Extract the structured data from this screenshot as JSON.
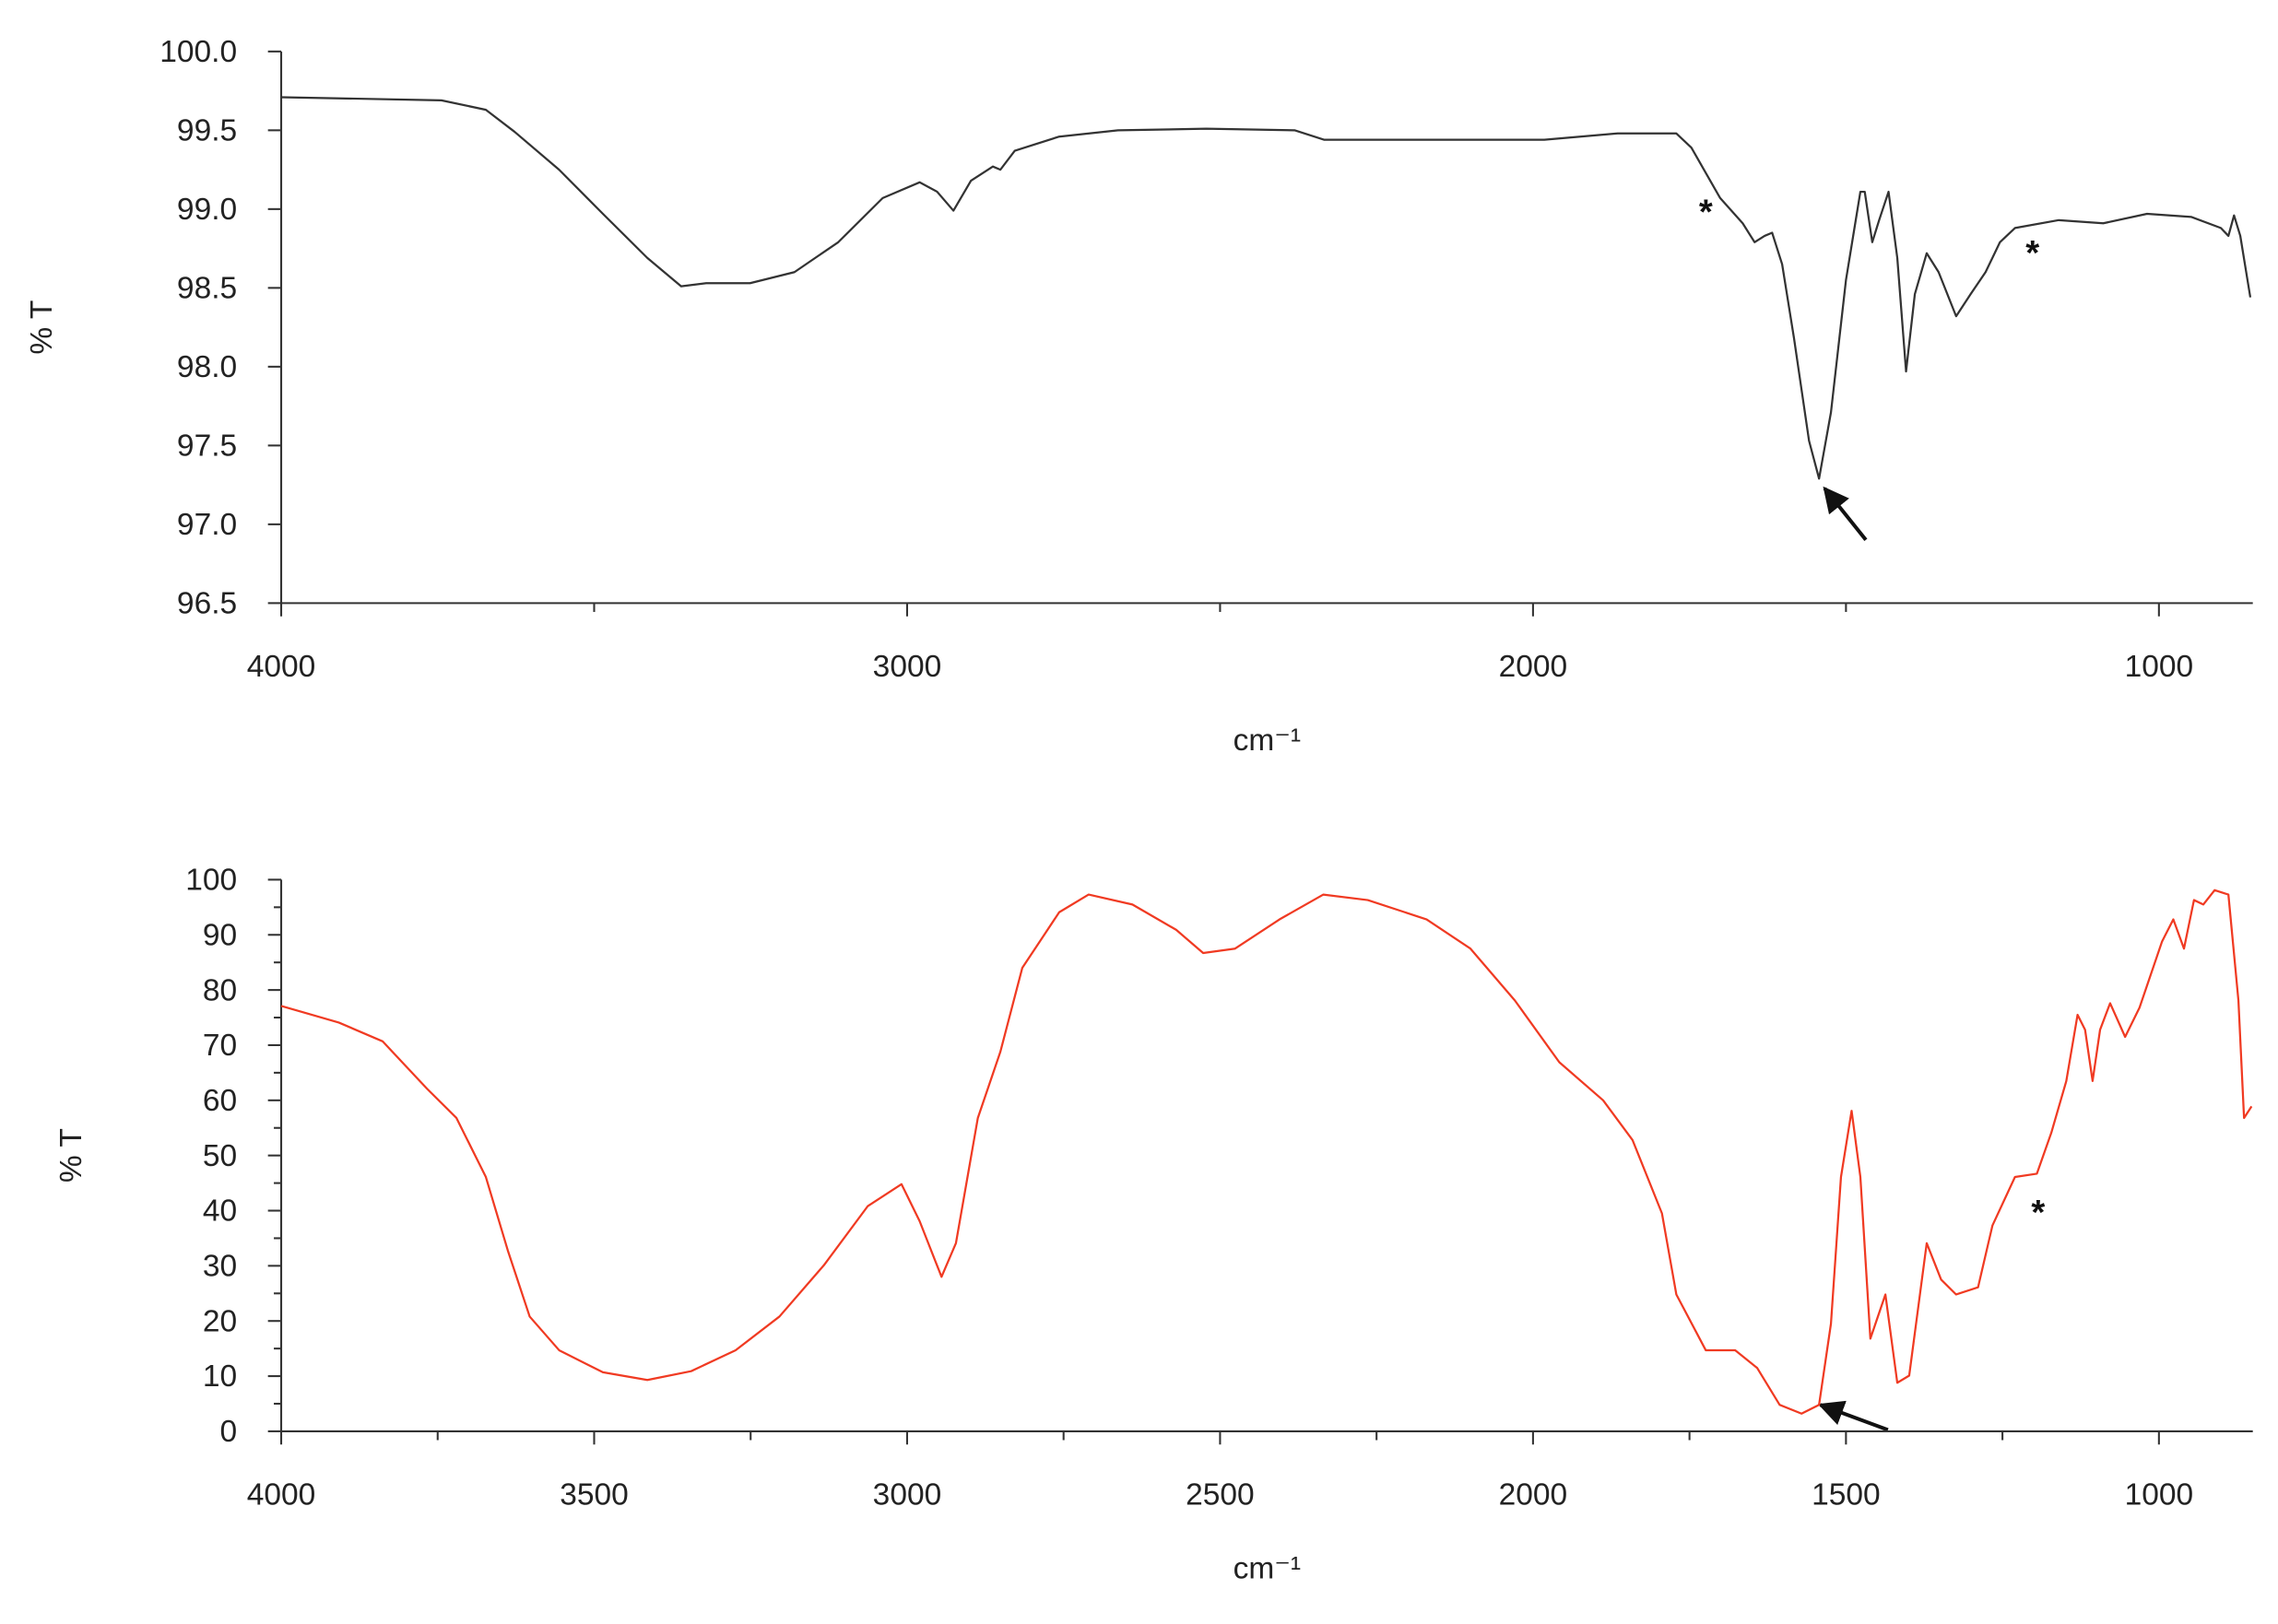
{
  "chart_data": [
    {
      "type": "line",
      "ylabel": "% T",
      "xlabel": "cm⁻¹",
      "color": "#333333",
      "xlim": [
        4000,
        850
      ],
      "ylim": [
        96.5,
        100
      ],
      "xticks": [
        4000,
        3000,
        2000,
        1000
      ],
      "xminorticks": [
        3500,
        2500,
        1500
      ],
      "yticks": [
        {
          "value": 100,
          "label": "100.0"
        },
        99.5,
        {
          "value": 99,
          "label": "99.0"
        },
        98.5,
        {
          "value": 98,
          "label": "98.0"
        },
        97.5,
        {
          "value": 97,
          "label": "97.0"
        },
        96.5
      ],
      "x": [
        4000,
        3744,
        3673,
        3627,
        3556,
        3486,
        3415,
        3361,
        3321,
        3251,
        3180,
        3110,
        3039,
        2980,
        2952,
        2926,
        2898,
        2863,
        2851,
        2828,
        2757,
        2663,
        2522,
        2381,
        2334,
        2217,
        2100,
        1982,
        1865,
        1771,
        1747,
        1724,
        1701,
        1665,
        1646,
        1630,
        1618,
        1602,
        1583,
        1559,
        1543,
        1524,
        1500,
        1477,
        1470,
        1458,
        1447,
        1432,
        1418,
        1404,
        1390,
        1371,
        1352,
        1324,
        1301,
        1277,
        1254,
        1230,
        1160,
        1089,
        1019,
        948,
        901,
        889,
        880,
        870,
        854
      ],
      "values": [
        99.71,
        99.69,
        99.63,
        99.49,
        99.25,
        98.97,
        98.69,
        98.51,
        98.53,
        98.53,
        98.6,
        98.79,
        99.07,
        99.17,
        99.11,
        98.99,
        99.18,
        99.27,
        99.25,
        99.37,
        99.46,
        99.5,
        99.51,
        99.5,
        99.44,
        99.44,
        99.44,
        99.44,
        99.48,
        99.48,
        99.39,
        99.23,
        99.07,
        98.91,
        98.79,
        98.83,
        98.85,
        98.65,
        98.18,
        97.53,
        97.29,
        97.71,
        98.55,
        99.11,
        99.11,
        98.79,
        98.93,
        99.11,
        98.69,
        97.97,
        98.46,
        98.72,
        98.6,
        98.32,
        98.46,
        98.6,
        98.79,
        98.88,
        98.93,
        98.91,
        98.97,
        98.95,
        98.88,
        98.83,
        98.96,
        98.83,
        98.44
      ],
      "annotations": [
        {
          "text": "*",
          "x": 1724,
          "y": 99.02
        },
        {
          "text": "*",
          "x": 1202,
          "y": 98.76
        }
      ]
    },
    {
      "type": "line",
      "ylabel": "% T",
      "xlabel": "cm⁻¹",
      "color": "#f03a22",
      "xlim": [
        4000,
        850
      ],
      "ylim": [
        0,
        100
      ],
      "xticks": [
        4000,
        3500,
        3000,
        2500,
        2000,
        1500,
        1000
      ],
      "xminorticks": [
        3750,
        3250,
        2750,
        2250,
        1750,
        1250
      ],
      "yticks": [
        0,
        10,
        20,
        30,
        40,
        50,
        60,
        70,
        80,
        90,
        100
      ],
      "yminorticks": [
        5,
        15,
        25,
        35,
        45,
        55,
        65,
        75,
        85,
        95
      ],
      "x": [
        4000,
        3908,
        3838,
        3767,
        3720,
        3673,
        3638,
        3603,
        3556,
        3486,
        3415,
        3345,
        3274,
        3204,
        3133,
        3063,
        3009,
        2980,
        2945,
        2922,
        2887,
        2851,
        2816,
        2757,
        2710,
        2640,
        2570,
        2527,
        2476,
        2405,
        2335,
        2264,
        2170,
        2100,
        2029,
        1958,
        1888,
        1841,
        1794,
        1771,
        1724,
        1677,
        1642,
        1606,
        1571,
        1543,
        1524,
        1508,
        1491,
        1477,
        1461,
        1437,
        1418,
        1399,
        1371,
        1348,
        1324,
        1289,
        1266,
        1230,
        1195,
        1172,
        1148,
        1130,
        1118,
        1106,
        1094,
        1078,
        1054,
        1031,
        995,
        977,
        960,
        944,
        929,
        911,
        889,
        873,
        864,
        852
      ],
      "values": [
        77.1,
        74.1,
        70.7,
        62.1,
        56.8,
        46.1,
        32.8,
        20.8,
        14.7,
        10.7,
        9.3,
        10.9,
        14.7,
        20.8,
        30.1,
        40.8,
        44.8,
        38.1,
        28.0,
        34.1,
        56.8,
        68.8,
        84.0,
        94.1,
        97.3,
        95.5,
        90.9,
        86.7,
        87.5,
        92.8,
        97.3,
        96.3,
        92.8,
        87.5,
        78.1,
        66.9,
        60.0,
        52.8,
        39.5,
        24.8,
        14.7,
        14.7,
        11.5,
        4.8,
        3.2,
        4.8,
        19.5,
        46.1,
        58.1,
        46.1,
        16.8,
        24.8,
        8.8,
        10.1,
        34.1,
        27.5,
        24.8,
        26.1,
        37.3,
        46.1,
        46.7,
        54.1,
        63.5,
        75.5,
        72.8,
        63.5,
        72.8,
        77.6,
        71.5,
        76.8,
        88.8,
        92.8,
        87.5,
        96.3,
        95.5,
        98.1,
        97.3,
        78.1,
        56.8,
        58.9
      ],
      "annotations": [
        {
          "text": "*",
          "x": 1193,
          "y": 40.8
        }
      ]
    }
  ]
}
